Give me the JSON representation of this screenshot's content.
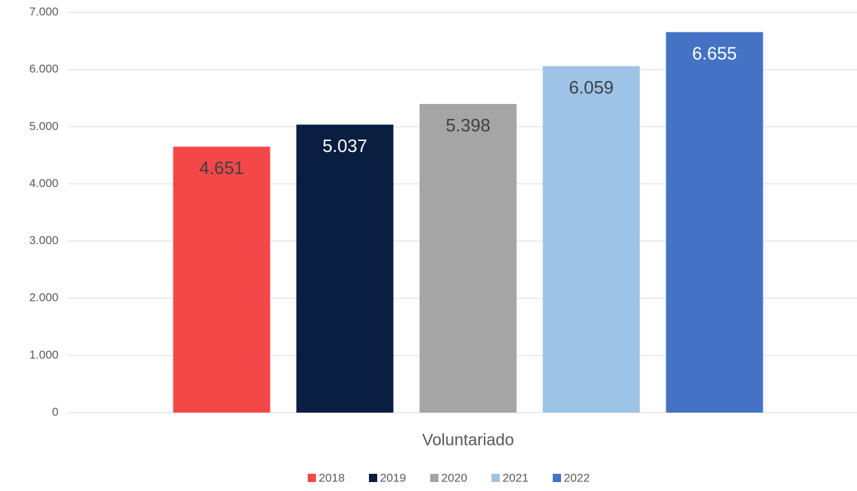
{
  "chart_data": {
    "type": "bar",
    "categories": [
      "Voluntariado"
    ],
    "series": [
      {
        "name": "2018",
        "color": "#f44848",
        "values": [
          4651
        ],
        "value_labels": [
          "4.651"
        ]
      },
      {
        "name": "2019",
        "color": "#0a1e42",
        "values": [
          5037
        ],
        "value_labels": [
          "5.037"
        ]
      },
      {
        "name": "2020",
        "color": "#a5a5a5",
        "values": [
          5398
        ],
        "value_labels": [
          "5.398"
        ]
      },
      {
        "name": "2021",
        "color": "#9dc3e6",
        "values": [
          6059
        ],
        "value_labels": [
          "6.059"
        ]
      },
      {
        "name": "2022",
        "color": "#4472c4",
        "values": [
          6655
        ],
        "value_labels": [
          "6.655"
        ]
      }
    ],
    "ylim": [
      0,
      7000
    ],
    "yticks": [
      0,
      {
        "value": 1000,
        "label": "1.000"
      },
      {
        "value": 2000,
        "label": "2.000"
      },
      {
        "value": 3000,
        "label": "3.000"
      },
      {
        "value": 4000,
        "label": "4.000"
      },
      {
        "value": 5000,
        "label": "5.000"
      },
      {
        "value": 6000,
        "label": "6.000"
      },
      {
        "value": 7000,
        "label": "7.000"
      }
    ],
    "grid": true,
    "legend": "bottom"
  }
}
